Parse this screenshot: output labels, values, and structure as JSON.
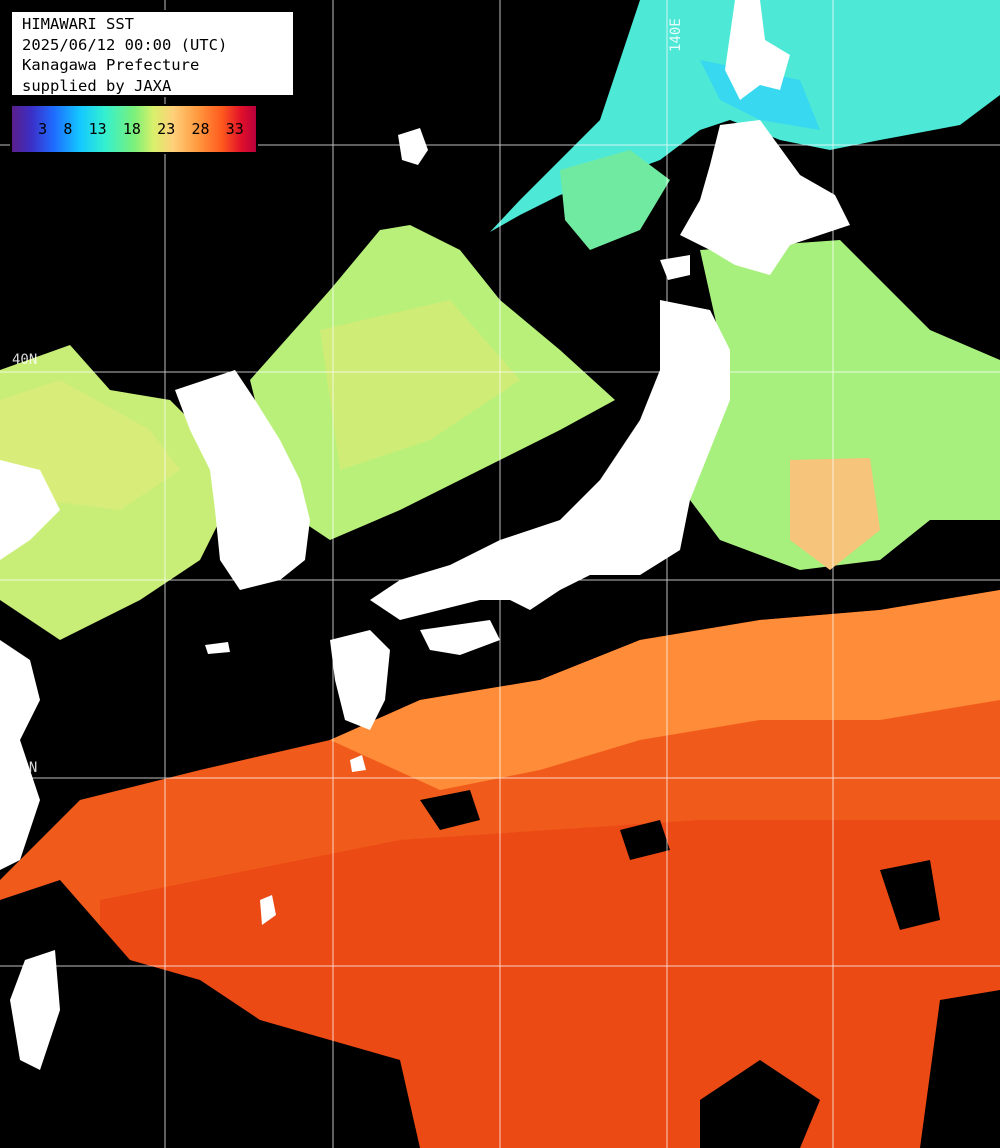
{
  "header": {
    "title": "HIMAWARI SST",
    "datetime": "2025/06/12 00:00 (UTC)",
    "region": "Kanagawa Prefecture",
    "credit": "supplied by JAXA"
  },
  "colorbar": {
    "ticks": [
      "3",
      "8",
      "13",
      "18",
      "23",
      "28",
      "33"
    ],
    "colors": [
      "#5a1f8a",
      "#1f6bff",
      "#14c8ff",
      "#7af07a",
      "#ffd07a",
      "#ff5a1e",
      "#b8003c"
    ]
  },
  "grid_labels": {
    "lon_140": "140E",
    "lat_40": "40N",
    "lat_30": "30N"
  },
  "colors": {
    "land": "#ffffff",
    "cloud": "#000000",
    "cold_sea": "#3ee6e0",
    "temperate_sea": "#b8f07a",
    "warm_sea": "#ff8a30",
    "hot_sea": "#f04a14",
    "grid": "#ffffff"
  }
}
